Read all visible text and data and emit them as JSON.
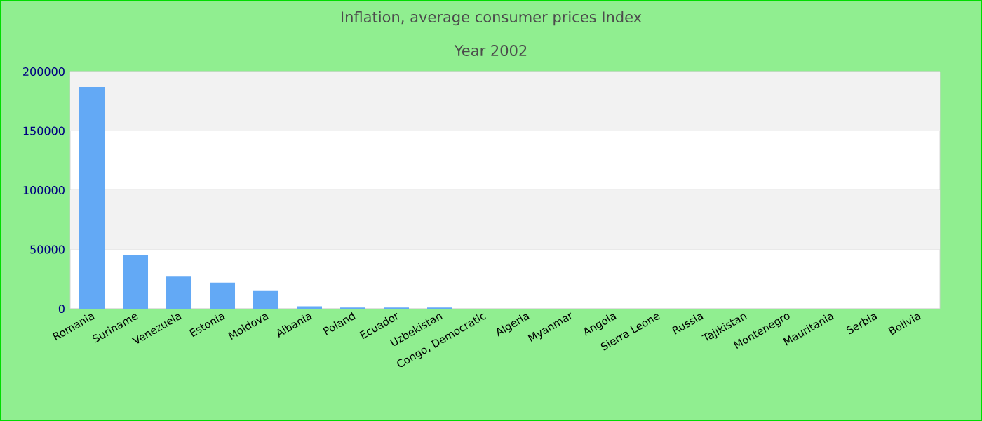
{
  "chart_data": {
    "type": "bar",
    "title": "Inflation, average consumer prices  Index",
    "subtitle": "Year 2002",
    "categories": [
      "Romania",
      "Suriname",
      "Venezuela",
      "Estonia",
      "Moldova",
      "Albania",
      "Poland",
      "Ecuador",
      "Uzbekistan",
      "Congo, Democratic",
      "Algeria",
      "Myanmar",
      "Angola",
      "Sierra Leone",
      "Russia",
      "Tajikistan",
      "Montenegro",
      "Mauritania",
      "Serbia",
      "Bolivia"
    ],
    "values": [
      187000,
      45000,
      27000,
      22000,
      15000,
      2000,
      1000,
      1000,
      1000,
      0,
      0,
      0,
      0,
      0,
      0,
      0,
      0,
      0,
      0,
      0
    ],
    "color": "#63a9f5",
    "ylim": [
      0,
      200000
    ],
    "yticks": [
      0,
      50000,
      100000,
      150000,
      200000
    ],
    "grid": "y"
  }
}
